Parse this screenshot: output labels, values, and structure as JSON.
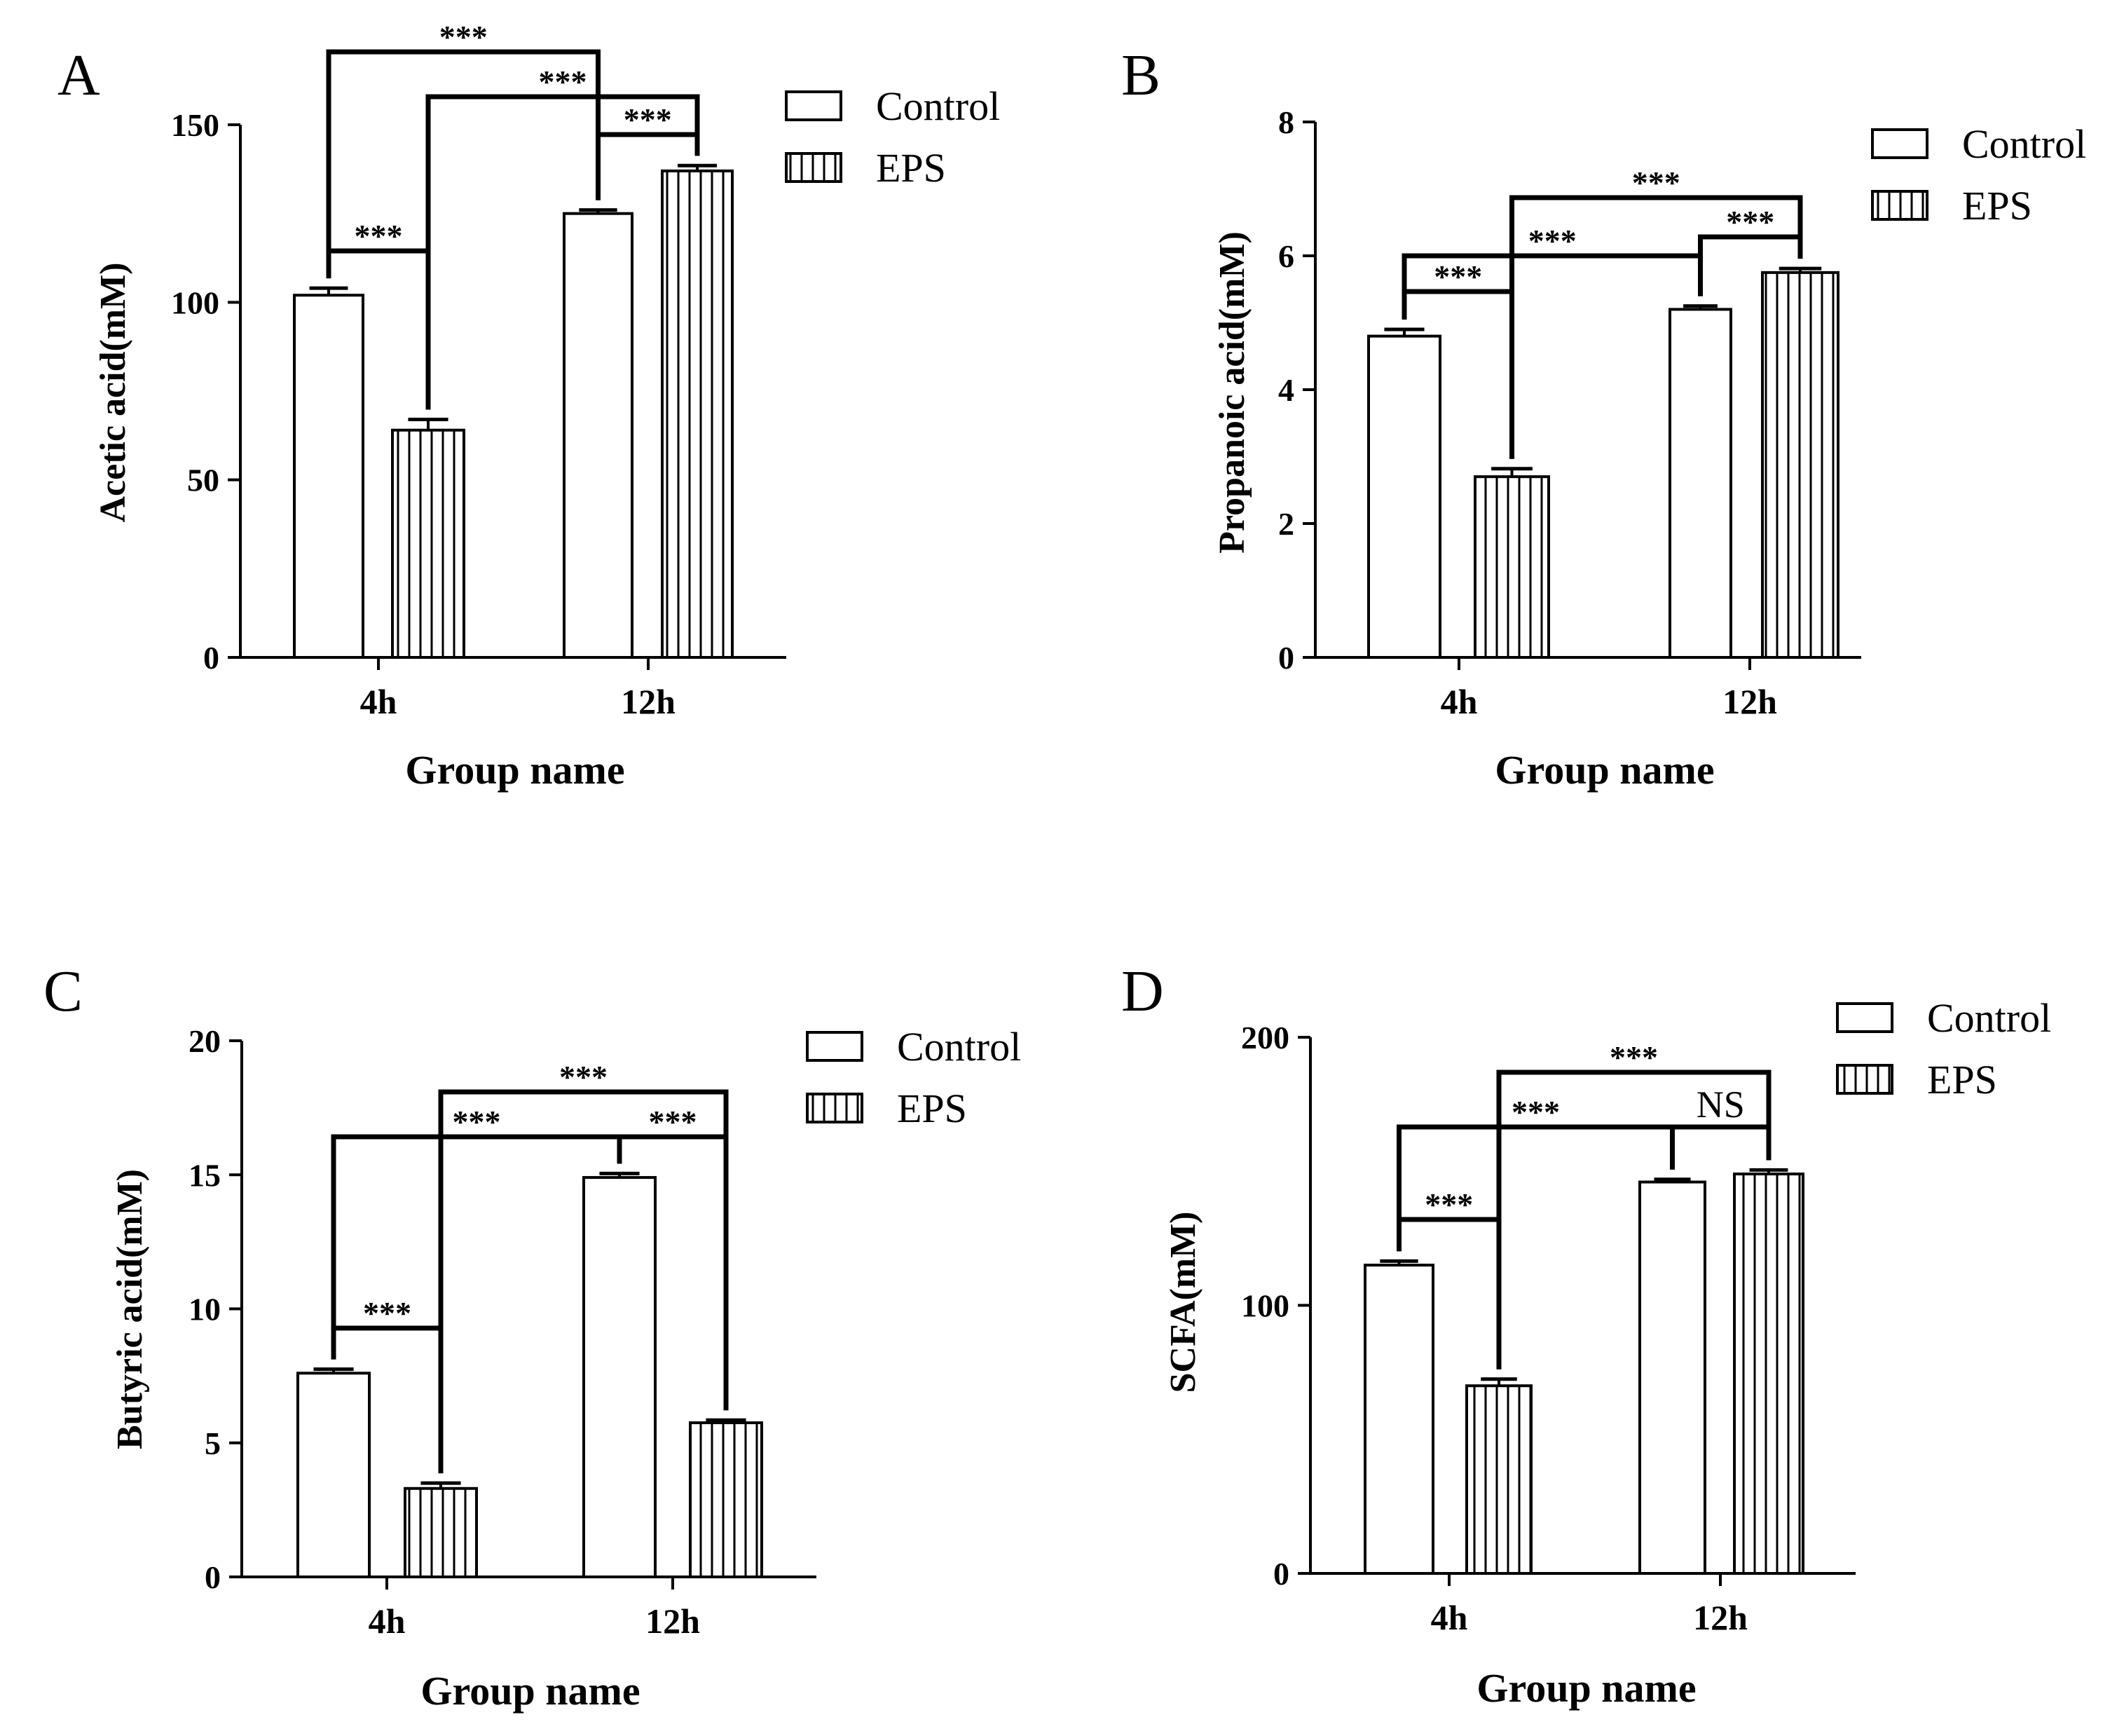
{
  "chart_data": [
    {
      "panel": "A",
      "type": "bar",
      "categories": [
        "4h",
        "12h"
      ],
      "series": [
        {
          "name": "Control",
          "values": [
            102,
            125
          ],
          "errors": [
            2,
            1
          ]
        },
        {
          "name": "EPS",
          "values": [
            64,
            137
          ],
          "errors": [
            3,
            1.5
          ]
        }
      ],
      "xlabel": "Group name",
      "ylabel": "Acetic acid(mM)",
      "ylim": [
        0,
        150
      ],
      "yticks": [
        "0",
        "50",
        "100",
        "150"
      ],
      "significance": [
        {
          "from": "4h-Control",
          "to": "4h-EPS",
          "label": "***"
        },
        {
          "from": "4h-Control",
          "to": "12h-Control",
          "label": "***"
        },
        {
          "from": "4h-EPS",
          "to": "12h-EPS",
          "label": "***"
        },
        {
          "from": "12h-Control",
          "to": "12h-EPS",
          "label": "***"
        }
      ]
    },
    {
      "panel": "B",
      "type": "bar",
      "categories": [
        "4h",
        "12h"
      ],
      "series": [
        {
          "name": "Control",
          "values": [
            4.8,
            5.2
          ],
          "errors": [
            0.1,
            0.05
          ]
        },
        {
          "name": "EPS",
          "values": [
            2.7,
            5.75
          ],
          "errors": [
            0.12,
            0.06
          ]
        }
      ],
      "xlabel": "Group name",
      "ylabel": "Propanoic acid(mM)",
      "ylim": [
        0,
        8
      ],
      "yticks": [
        "0",
        "2",
        "4",
        "6",
        "8"
      ],
      "significance": [
        {
          "from": "4h-Control",
          "to": "4h-EPS",
          "label": "***"
        },
        {
          "from": "4h-Control",
          "to": "12h-Control",
          "label": "***"
        },
        {
          "from": "4h-EPS",
          "to": "12h-EPS",
          "label": "***"
        },
        {
          "from": "12h-Control",
          "to": "12h-EPS",
          "label": "***"
        }
      ]
    },
    {
      "panel": "C",
      "type": "bar",
      "categories": [
        "4h",
        "12h"
      ],
      "series": [
        {
          "name": "Control",
          "values": [
            7.6,
            14.9
          ],
          "errors": [
            0.15,
            0.15
          ]
        },
        {
          "name": "EPS",
          "values": [
            3.3,
            5.75
          ],
          "errors": [
            0.2,
            0.1
          ]
        }
      ],
      "xlabel": "Group name",
      "ylabel": "Butyric acid(mM)",
      "ylim": [
        0,
        20
      ],
      "yticks": [
        "0",
        "5",
        "10",
        "15",
        "20"
      ],
      "significance": [
        {
          "from": "4h-Control",
          "to": "4h-EPS",
          "label": "***"
        },
        {
          "from": "4h-Control",
          "to": "12h-Control",
          "label": "***"
        },
        {
          "from": "4h-EPS",
          "to": "12h-EPS",
          "label": "***"
        },
        {
          "from": "12h-Control",
          "to": "12h-EPS",
          "label": "***"
        }
      ]
    },
    {
      "panel": "D",
      "type": "bar",
      "categories": [
        "4h",
        "12h"
      ],
      "series": [
        {
          "name": "Control",
          "values": [
            115,
            146
          ],
          "errors": [
            1.5,
            1
          ]
        },
        {
          "name": "EPS",
          "values": [
            70,
            149
          ],
          "errors": [
            2.5,
            1.5
          ]
        }
      ],
      "xlabel": "Group name",
      "ylabel": "SCFA(mM)",
      "ylim": [
        0,
        200
      ],
      "yticks": [
        "0",
        "100",
        "200"
      ],
      "significance": [
        {
          "from": "4h-Control",
          "to": "4h-EPS",
          "label": "***"
        },
        {
          "from": "4h-Control",
          "to": "12h-Control",
          "label": "***"
        },
        {
          "from": "4h-EPS",
          "to": "12h-EPS",
          "label": "***"
        },
        {
          "from": "12h-Control",
          "to": "12h-EPS",
          "label": "NS"
        }
      ]
    }
  ]
}
